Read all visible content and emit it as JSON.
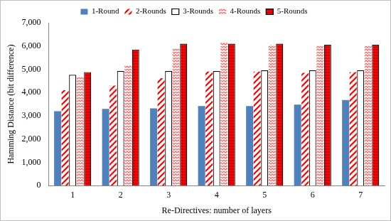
{
  "chart_data": {
    "type": "bar",
    "x_label": "Re-Directives: number of layers",
    "y_label": "Hamming Distance (bit difference)",
    "categories": [
      "1",
      "2",
      "3",
      "4",
      "5",
      "6",
      "7"
    ],
    "series": [
      {
        "name": "1-Round",
        "color": "#4f81bd",
        "values": [
          3200,
          3300,
          3320,
          3420,
          3420,
          3480,
          3680
        ]
      },
      {
        "name": "2-Rounds",
        "color": "#ff0000",
        "values": [
          4100,
          4300,
          4620,
          4900,
          4900,
          4850,
          4880
        ]
      },
      {
        "name": "3-Rounds",
        "color": "#ffffff",
        "values": [
          4760,
          4920,
          4920,
          4920,
          4950,
          4960,
          4960
        ]
      },
      {
        "name": "4-Rounds",
        "color": "#ff6666",
        "values": [
          4650,
          5150,
          5880,
          6150,
          6050,
          6000,
          6000
        ]
      },
      {
        "name": "5-Rounds",
        "color": "#ff0000",
        "values": [
          4880,
          5850,
          6100,
          6100,
          6100,
          6050,
          6050
        ]
      }
    ],
    "ylim": [
      0,
      7000
    ],
    "yticks": [
      0,
      1000,
      2000,
      3000,
      4000,
      5000,
      6000,
      7000
    ],
    "grid": false,
    "legend": "top"
  }
}
